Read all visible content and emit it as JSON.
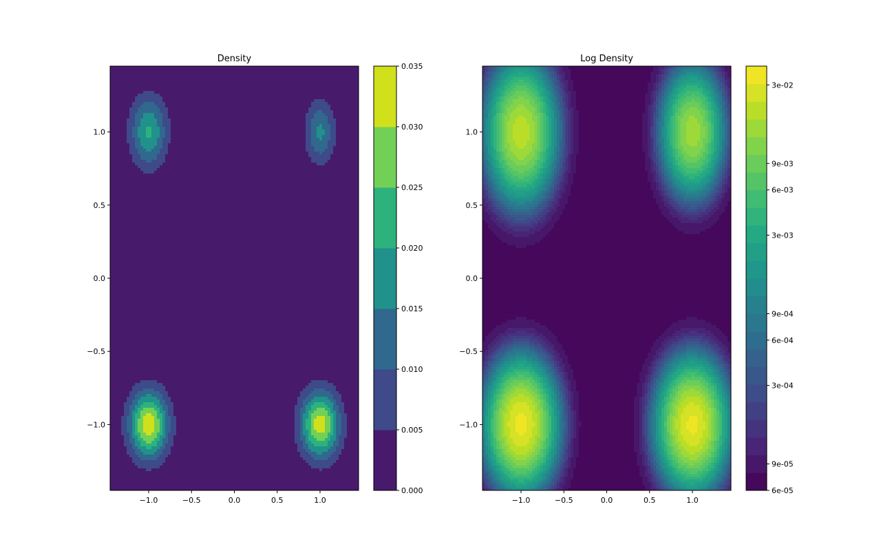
{
  "chart_data": [
    {
      "type": "contourf",
      "title": "Density",
      "xlabel": "",
      "ylabel": "",
      "xlim": [
        -1.45,
        1.45
      ],
      "ylim": [
        -1.45,
        1.45
      ],
      "x_ticks": [
        -1.0,
        -0.5,
        0.0,
        0.5,
        1.0
      ],
      "x_tick_labels": [
        "−1.0",
        "−0.5",
        "0.0",
        "0.5",
        "1.0"
      ],
      "y_ticks": [
        -1.0,
        -0.5,
        0.0,
        0.5,
        1.0
      ],
      "y_tick_labels": [
        "−1.0",
        "−0.5",
        "0.0",
        "0.5",
        "1.0"
      ],
      "grid": false,
      "colormap": "viridis",
      "colorbar": {
        "scale": "linear",
        "levels": [
          0.0,
          0.005,
          0.01,
          0.015,
          0.02,
          0.025,
          0.03,
          0.035
        ],
        "ticks": [
          0.0,
          0.005,
          0.01,
          0.015,
          0.02,
          0.025,
          0.03,
          0.035
        ],
        "tick_labels": [
          "0.000",
          "0.005",
          "0.010",
          "0.015",
          "0.020",
          "0.025",
          "0.030",
          "0.035"
        ],
        "band_colors": [
          "#481a6c",
          "#3e4a89",
          "#31688e",
          "#21918c",
          "#2db27d",
          "#73d056",
          "#d0e11c"
        ]
      },
      "peaks": [
        {
          "x": -1.0,
          "y": 1.0,
          "peak": 0.0205,
          "sx": 0.15,
          "sy": 0.17
        },
        {
          "x": 1.0,
          "y": 1.0,
          "peak": 0.016,
          "sx": 0.12,
          "sy": 0.15
        },
        {
          "x": -1.0,
          "y": -1.0,
          "peak": 0.0335,
          "sx": 0.16,
          "sy": 0.16
        },
        {
          "x": 1.0,
          "y": -1.0,
          "peak": 0.0325,
          "sx": 0.16,
          "sy": 0.16
        }
      ]
    },
    {
      "type": "contourf",
      "title": "Log Density",
      "xlabel": "",
      "ylabel": "",
      "xlim": [
        -1.45,
        1.45
      ],
      "ylim": [
        -1.45,
        1.45
      ],
      "x_ticks": [
        -1.0,
        -0.5,
        0.0,
        0.5,
        1.0
      ],
      "x_tick_labels": [
        "−1.0",
        "−0.5",
        "0.0",
        "0.5",
        "1.0"
      ],
      "y_ticks": [
        -1.0,
        -0.5,
        0.0,
        0.5,
        1.0
      ],
      "y_tick_labels": [
        "−1.0",
        "−0.5",
        "0.0",
        "0.5",
        "1.0"
      ],
      "grid": false,
      "colormap": "viridis",
      "colorbar": {
        "scale": "log",
        "range": [
          6e-05,
          0.04
        ],
        "ticks": [
          6e-05,
          9e-05,
          0.0003,
          0.0006,
          0.0009,
          0.003,
          0.006,
          0.009,
          0.03
        ],
        "tick_labels": [
          "6e-05",
          "9e-05",
          "3e-04",
          "6e-04",
          "9e-04",
          "3e-03",
          "6e-03",
          "9e-03",
          "3e-02"
        ]
      },
      "background": 7e-05,
      "peaks": [
        {
          "x": -1.0,
          "y": 1.0,
          "peak": 0.0205,
          "sx": 0.17,
          "sy": 0.2
        },
        {
          "x": 1.0,
          "y": 1.0,
          "peak": 0.016,
          "sx": 0.15,
          "sy": 0.18
        },
        {
          "x": -1.0,
          "y": -1.0,
          "peak": 0.0335,
          "sx": 0.17,
          "sy": 0.18
        },
        {
          "x": 1.0,
          "y": -1.0,
          "peak": 0.0325,
          "sx": 0.17,
          "sy": 0.18
        }
      ]
    }
  ]
}
